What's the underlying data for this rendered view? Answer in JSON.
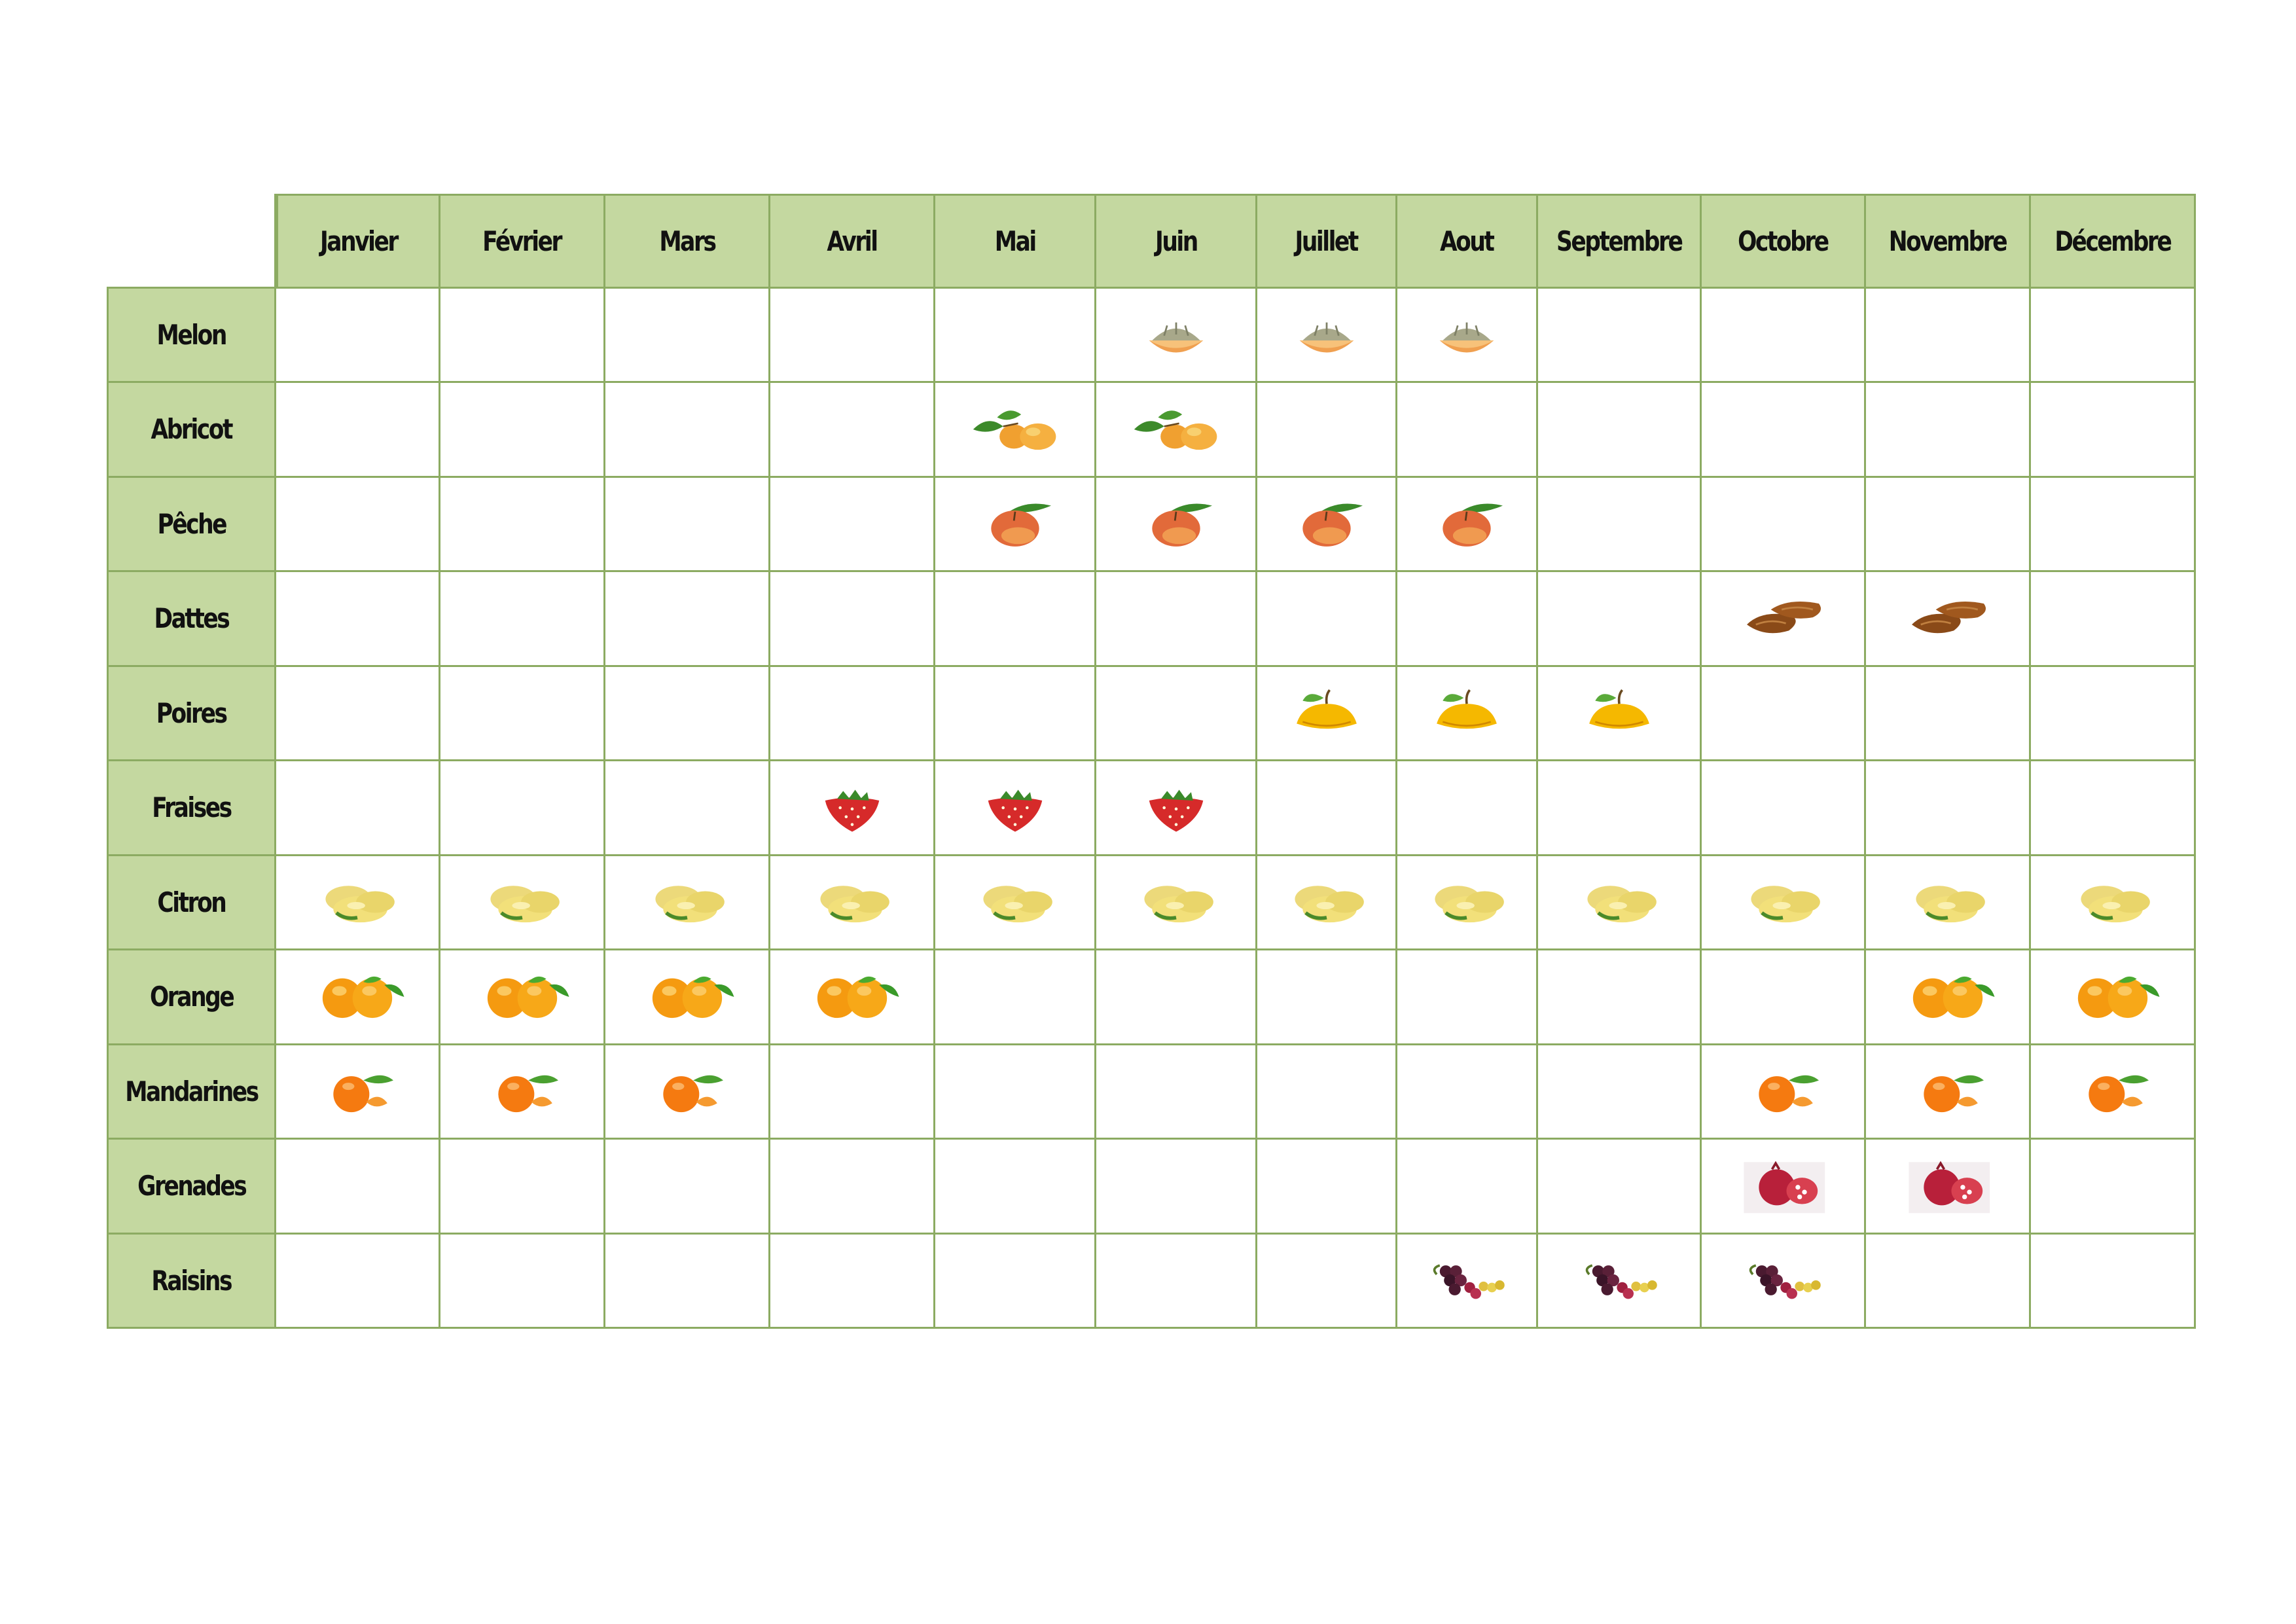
{
  "months": [
    "Janvier",
    "Février",
    "Mars",
    "Avril",
    "Mai",
    "Juin",
    "Juillet",
    "Aout",
    "Septembre",
    "Octobre",
    "Novembre",
    "Décembre"
  ],
  "rows": [
    {
      "label": "Melon",
      "icon": "melon",
      "months": [
        6,
        7,
        8
      ]
    },
    {
      "label": "Abricot",
      "icon": "apricot",
      "months": [
        5,
        6
      ]
    },
    {
      "label": "Pêche",
      "icon": "peach",
      "months": [
        5,
        6,
        7,
        8
      ]
    },
    {
      "label": "Dattes",
      "icon": "dates",
      "months": [
        10,
        11
      ]
    },
    {
      "label": "Poires",
      "icon": "pear",
      "months": [
        7,
        8,
        9
      ]
    },
    {
      "label": "Fraises",
      "icon": "strawberry",
      "months": [
        4,
        5,
        6
      ]
    },
    {
      "label": "Citron",
      "icon": "lemon",
      "months": [
        1,
        2,
        3,
        4,
        5,
        6,
        7,
        8,
        9,
        10,
        11,
        12
      ]
    },
    {
      "label": "Orange",
      "icon": "orange",
      "months": [
        1,
        2,
        3,
        4,
        11,
        12
      ]
    },
    {
      "label": "Mandarines",
      "icon": "mandarin",
      "months": [
        1,
        2,
        3,
        10,
        11,
        12
      ]
    },
    {
      "label": "Grenades",
      "icon": "pomegranate",
      "months": [
        10,
        11
      ]
    },
    {
      "label": "Raisins",
      "icon": "grapes",
      "months": [
        8,
        9,
        10
      ]
    }
  ],
  "colors": {
    "header_fill": "#c4d8a0",
    "grid_line": "#8cab62"
  }
}
